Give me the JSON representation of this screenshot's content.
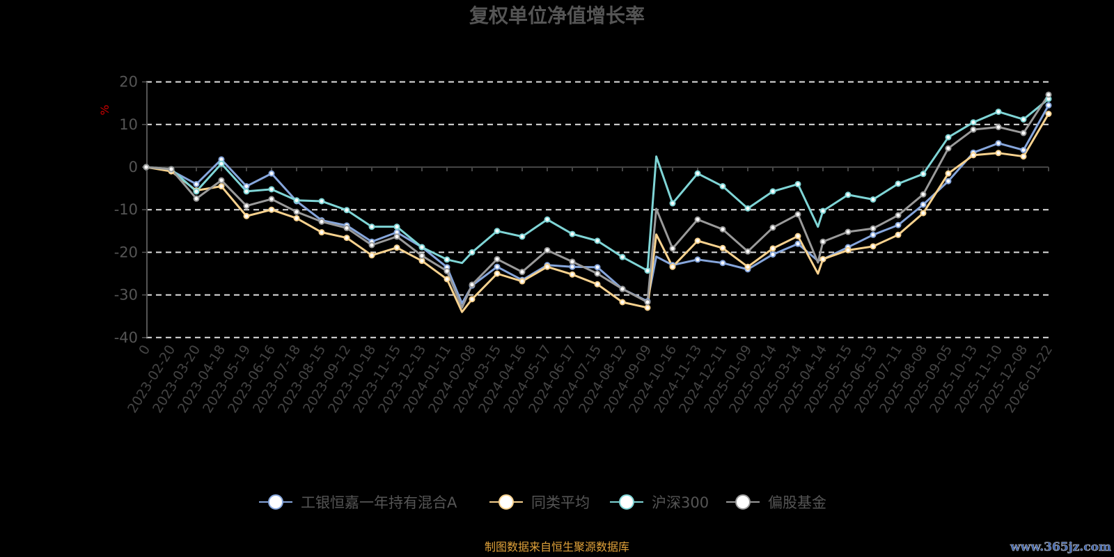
{
  "chart_data": {
    "type": "line",
    "title": "复权单位净值增长率",
    "ylabel": "%",
    "xlabel": "",
    "ylim": [
      -40,
      20
    ],
    "yticks": [
      20,
      10,
      0,
      -10,
      -20,
      -30,
      -40
    ],
    "grid": true,
    "legend_position": "bottom",
    "categories": [
      "0",
      "2023-02-20",
      "2023-03-20",
      "2023-04-18",
      "2023-05-19",
      "2023-06-16",
      "2023-07-18",
      "2023-08-15",
      "2023-09-12",
      "2023-10-18",
      "2023-11-15",
      "2023-12-13",
      "2024-01-11",
      "2024-02-08",
      "2024-03-15",
      "2024-04-16",
      "2024-05-17",
      "2024-06-17",
      "2024-07-15",
      "2024-08-12",
      "2024-09-09",
      "2024-10-16",
      "2024-11-13",
      "2024-12-11",
      "2025-01-09",
      "2025-02-14",
      "2025-03-14",
      "2025-04-14",
      "2025-05-15",
      "2025-06-13",
      "2025-07-11",
      "2025-08-08",
      "2025-09-05",
      "2025-10-13",
      "2025-11-10",
      "2025-12-08",
      "2026-01-22"
    ],
    "series": [
      {
        "name": "工银恒嘉一年持有混合A",
        "color": "#86a6dc",
        "marker_values": [
          0,
          -0.8,
          -4,
          1.8,
          -4.5,
          -1.5,
          -8,
          -12.5,
          -13.7,
          -17.5,
          -15.3,
          -18.8,
          -23.5,
          -27.8,
          -23.4,
          -26.5,
          -23,
          -23.4,
          -23.5,
          -28.6,
          -31.5,
          -23,
          -21.7,
          -22.5,
          -24,
          -20.5,
          -18,
          -21.6,
          -18.8,
          -15.9,
          -13.6,
          -8.8,
          -3.3,
          3.4,
          5.6,
          4,
          14.5
        ],
        "extra_points": [
          [
            12.6,
            -32
          ],
          [
            20.35,
            -21
          ],
          [
            26.8,
            -22
          ]
        ]
      },
      {
        "name": "同类平均",
        "color": "#f8d28e",
        "marker_values": [
          0,
          -1,
          -5.5,
          -4.5,
          -11.5,
          -10,
          -12,
          -15.3,
          -16.6,
          -20.7,
          -18.9,
          -22,
          -26.3,
          -31,
          -25,
          -26.8,
          -23.4,
          -25.2,
          -27.5,
          -31.7,
          -33,
          -23.4,
          -17.3,
          -19,
          -23.4,
          -19.1,
          -16.2,
          -21.6,
          -19.5,
          -18.6,
          -15.9,
          -10.8,
          -1.5,
          2.8,
          3.3,
          2.5,
          12.5
        ],
        "extra_points": [
          [
            12.6,
            -34
          ],
          [
            20.35,
            -15.8
          ],
          [
            26.8,
            -25
          ]
        ]
      },
      {
        "name": "沪深300",
        "color": "#7fd5d6",
        "marker_values": [
          0,
          -0.5,
          -5.7,
          0.8,
          -5.7,
          -5.2,
          -7.8,
          -8,
          -10.1,
          -14,
          -14,
          -18.8,
          -21.7,
          -20,
          -15,
          -16.3,
          -12.3,
          -15.7,
          -17.3,
          -21.1,
          -24.3,
          -8.5,
          -1.5,
          -4.5,
          -9.7,
          -5.7,
          -4,
          -10.3,
          -6.5,
          -7.6,
          -3.9,
          -1.6,
          7,
          10.5,
          13,
          11.2,
          16
        ],
        "extra_points": [
          [
            12.6,
            -22.5
          ],
          [
            20.35,
            2.5
          ],
          [
            26.8,
            -14
          ]
        ]
      },
      {
        "name": "偏股基金",
        "color": "#9a9a9a",
        "marker_values": [
          0,
          -0.5,
          -7.4,
          -3.1,
          -9.1,
          -7.5,
          -10.5,
          -12.8,
          -14.3,
          -18.3,
          -16.3,
          -20.8,
          -24.4,
          -27.6,
          -21.6,
          -24.6,
          -19.5,
          -22.2,
          -25,
          -28.6,
          -31.7,
          -19.1,
          -12.3,
          -14.6,
          -19.8,
          -14.2,
          -11.1,
          -17.5,
          -15.2,
          -14.4,
          -11.3,
          -6.4,
          4.4,
          8.8,
          9.4,
          8,
          17
        ],
        "extra_points": [
          [
            12.6,
            -33
          ],
          [
            20.35,
            -9.8
          ],
          [
            26.8,
            -22.4
          ]
        ]
      }
    ]
  },
  "footer": "制图数据来自恒生聚源数据库",
  "watermark": "www.365jz.com"
}
